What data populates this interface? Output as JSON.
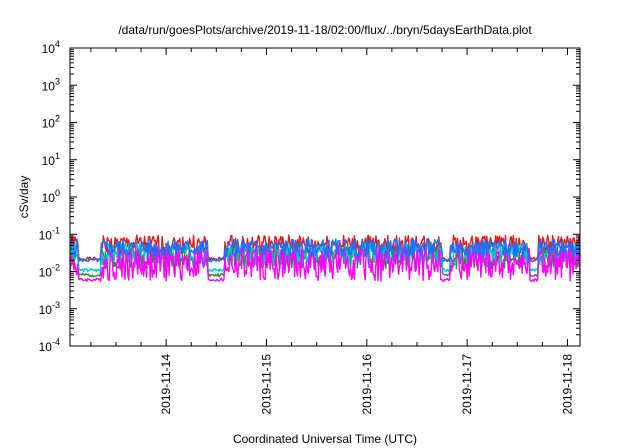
{
  "chart_data": {
    "type": "line",
    "title": "/data/run/goesPlots/archive/2019-11-18/02:00/flux/../bryn/5daysEarthData.plot",
    "xlabel": "Coordinated Universal Time (UTC)",
    "ylabel": "cSv/day",
    "yscale": "log",
    "ylim": [
      0.0001,
      10000
    ],
    "y_ticks": [
      {
        "base": "10",
        "exp": "-4"
      },
      {
        "base": "10",
        "exp": "-3"
      },
      {
        "base": "10",
        "exp": "-2"
      },
      {
        "base": "10",
        "exp": "-1"
      },
      {
        "base": "10",
        "exp": "0"
      },
      {
        "base": "10",
        "exp": "1"
      },
      {
        "base": "10",
        "exp": "2"
      },
      {
        "base": "10",
        "exp": "3"
      },
      {
        "base": "10",
        "exp": "4"
      }
    ],
    "x_range": [
      "2019-11-13T01:00",
      "2019-11-18T03:00"
    ],
    "x_ticks": [
      "2019-11-14",
      "2019-11-15",
      "2019-11-16",
      "2019-11-17",
      "2019-11-18"
    ],
    "grid": false,
    "legend": "none",
    "series": [
      {
        "color": "#e41a1c",
        "low": 0.03,
        "high": 0.095,
        "dip": 0.022,
        "seed": 1
      },
      {
        "color": "#2a8c3e",
        "low": 0.012,
        "high": 0.05,
        "dip": 0.008,
        "seed": 2
      },
      {
        "color": "#00c8c8",
        "low": 0.015,
        "high": 0.06,
        "dip": 0.011,
        "seed": 3
      },
      {
        "color": "#ff00ff",
        "low": 0.0055,
        "high": 0.05,
        "dip": 0.006,
        "seed": 4
      },
      {
        "color": "#1e6fff",
        "low": 0.025,
        "high": 0.075,
        "dip": 0.02,
        "seed": 5
      }
    ]
  }
}
